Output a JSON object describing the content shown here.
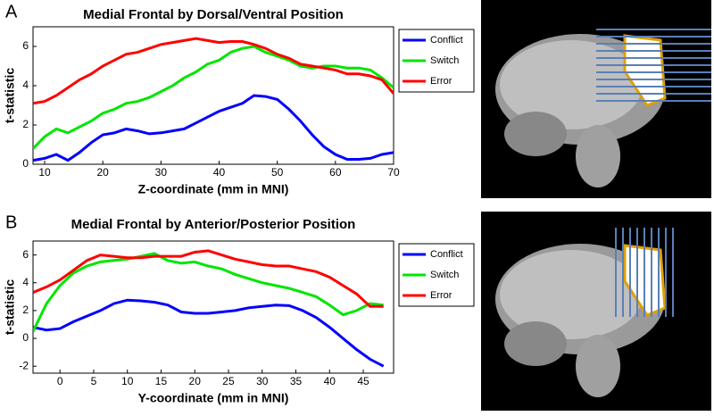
{
  "chart_data": [
    {
      "type": "line",
      "panel": "A",
      "title": "Medial Frontal by Dorsal/Ventral Position",
      "xlabel": "Z-coordinate (mm in MNI)",
      "ylabel": "t-statistic",
      "x": [
        8,
        10,
        12,
        14,
        16,
        18,
        20,
        22,
        24,
        26,
        28,
        30,
        32,
        34,
        36,
        38,
        40,
        42,
        44,
        46,
        48,
        50,
        52,
        54,
        56,
        58,
        60,
        62,
        64,
        66,
        68,
        70
      ],
      "series": [
        {
          "name": "Conflict",
          "color": "#0000ff",
          "values": [
            0.2,
            0.3,
            0.5,
            0.2,
            0.6,
            1.1,
            1.5,
            1.6,
            1.8,
            1.7,
            1.55,
            1.6,
            1.7,
            1.8,
            2.1,
            2.4,
            2.7,
            2.9,
            3.1,
            3.5,
            3.45,
            3.3,
            2.8,
            2.2,
            1.5,
            0.9,
            0.5,
            0.25,
            0.25,
            0.3,
            0.5,
            0.6
          ]
        },
        {
          "name": "Switch",
          "color": "#00e600",
          "values": [
            0.8,
            1.4,
            1.8,
            1.6,
            1.9,
            2.2,
            2.6,
            2.8,
            3.1,
            3.2,
            3.4,
            3.7,
            4.0,
            4.4,
            4.7,
            5.1,
            5.3,
            5.7,
            5.9,
            6.0,
            5.7,
            5.5,
            5.3,
            5.0,
            4.9,
            5.0,
            5.0,
            4.9,
            4.9,
            4.8,
            4.4,
            3.9
          ]
        },
        {
          "name": "Error",
          "color": "#ff0000",
          "values": [
            3.1,
            3.2,
            3.5,
            3.9,
            4.3,
            4.6,
            5.0,
            5.3,
            5.6,
            5.7,
            5.9,
            6.1,
            6.2,
            6.3,
            6.4,
            6.3,
            6.2,
            6.25,
            6.25,
            6.1,
            5.9,
            5.6,
            5.4,
            5.1,
            5.0,
            4.9,
            4.8,
            4.6,
            4.6,
            4.5,
            4.3,
            3.6
          ]
        }
      ],
      "xlim": [
        8,
        70
      ],
      "ylim": [
        0,
        7
      ],
      "xticks": [
        10,
        20,
        30,
        40,
        50,
        60,
        70
      ],
      "yticks": [
        0,
        2,
        4,
        6
      ]
    },
    {
      "type": "line",
      "panel": "B",
      "title": "Medial Frontal by Anterior/Posterior Position",
      "xlabel": "Y-coordinate (mm in MNI)",
      "ylabel": "t-statistic",
      "x": [
        -4,
        -2,
        0,
        2,
        4,
        6,
        8,
        10,
        12,
        14,
        16,
        18,
        20,
        22,
        24,
        26,
        28,
        30,
        32,
        34,
        36,
        38,
        40,
        42,
        44,
        46,
        48
      ],
      "series": [
        {
          "name": "Conflict",
          "color": "#0000ff",
          "values": [
            0.8,
            0.6,
            0.7,
            1.2,
            1.6,
            2.0,
            2.5,
            2.75,
            2.7,
            2.6,
            2.4,
            1.9,
            1.8,
            1.8,
            1.9,
            2.0,
            2.2,
            2.3,
            2.4,
            2.35,
            2.0,
            1.5,
            0.8,
            0.0,
            -0.8,
            -1.5,
            -2.0
          ]
        },
        {
          "name": "Switch",
          "color": "#00e600",
          "values": [
            0.5,
            2.5,
            3.8,
            4.7,
            5.2,
            5.5,
            5.6,
            5.7,
            5.9,
            6.1,
            5.6,
            5.4,
            5.5,
            5.2,
            5.0,
            4.6,
            4.3,
            4.0,
            3.8,
            3.6,
            3.3,
            3.0,
            2.4,
            1.7,
            2.0,
            2.5,
            2.4
          ]
        },
        {
          "name": "Error",
          "color": "#ff0000",
          "values": [
            3.3,
            3.7,
            4.2,
            4.9,
            5.6,
            6.0,
            5.9,
            5.8,
            5.8,
            5.9,
            5.9,
            5.9,
            6.2,
            6.3,
            6.0,
            5.7,
            5.5,
            5.3,
            5.2,
            5.2,
            5.0,
            4.8,
            4.4,
            3.8,
            3.2,
            2.3,
            2.3
          ]
        }
      ],
      "xlim": [
        -4,
        49.5
      ],
      "ylim": [
        -2.5,
        7
      ],
      "xticks": [
        0,
        5,
        10,
        15,
        20,
        25,
        30,
        35,
        40,
        45
      ],
      "yticks": [
        -2,
        0,
        2,
        4,
        6
      ]
    }
  ]
}
